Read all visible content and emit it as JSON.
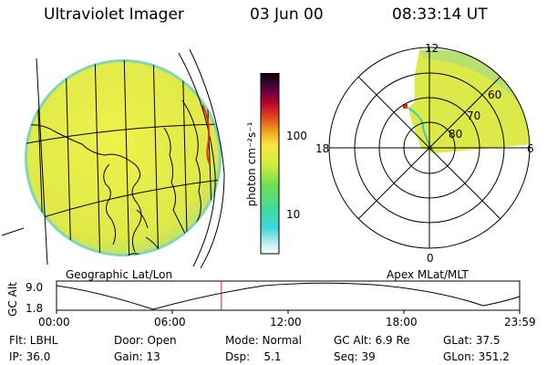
{
  "header": {
    "instrument": "Ultraviolet Imager",
    "date": "03 Jun 00",
    "time": "08:33:14 UT"
  },
  "colorbar": {
    "label": "photon cm⁻²s⁻¹",
    "ticks": [
      "100",
      "10"
    ]
  },
  "polar": {
    "mlt_labels": {
      "top": "12",
      "left": "18",
      "right": "6",
      "bottom": "0"
    },
    "lat_labels": [
      "60",
      "70",
      "80"
    ]
  },
  "projections": {
    "left": "Geographic Lat/Lon",
    "right": "Apex MLat/MLT"
  },
  "altitude_plot": {
    "ylabel": "GC Alt",
    "yticks": [
      "9.0",
      "1.8"
    ],
    "xticks": [
      "00:00",
      "06:00",
      "12:00",
      "18:00",
      "23:59"
    ],
    "current_time_fraction": 0.356
  },
  "info": {
    "row1": [
      "Flt: LBHL",
      "Door: Open",
      "Mode: Normal",
      "GC Alt: 6.9 Re",
      "GLat: 37.5"
    ],
    "row2": [
      "IP: 36.0",
      "Gain: 13",
      "Dsp:    5.1",
      "Seq: 39",
      "GLon: 351.2"
    ]
  },
  "colors": {
    "disk_fill": "#e4ee48",
    "disk_edge": "#7fd8b0",
    "aurora_red": "#e03010",
    "current_time_marker": "#d02020"
  }
}
